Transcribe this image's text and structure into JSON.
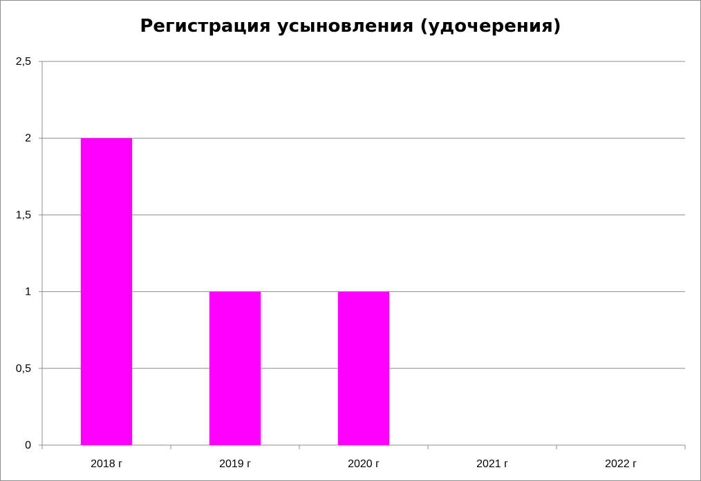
{
  "chart_data": {
    "type": "bar",
    "title": "Регистрация усыновления (удочерения)",
    "categories": [
      "2018 г",
      "2019 г",
      "2020 г",
      "2021 г",
      "2022 г"
    ],
    "values": [
      2,
      1,
      1,
      0,
      0
    ],
    "ylim": [
      0,
      2.5
    ],
    "yticks": [
      "0",
      "0,5",
      "1",
      "1,5",
      "2",
      "2,5"
    ],
    "ytick_values": [
      0,
      0.5,
      1,
      1.5,
      2,
      2.5
    ],
    "xlabel": "",
    "ylabel": "",
    "grid": true,
    "legend": "none",
    "bar_color": "#ff00ff",
    "grid_color": "#8c8c8c"
  }
}
